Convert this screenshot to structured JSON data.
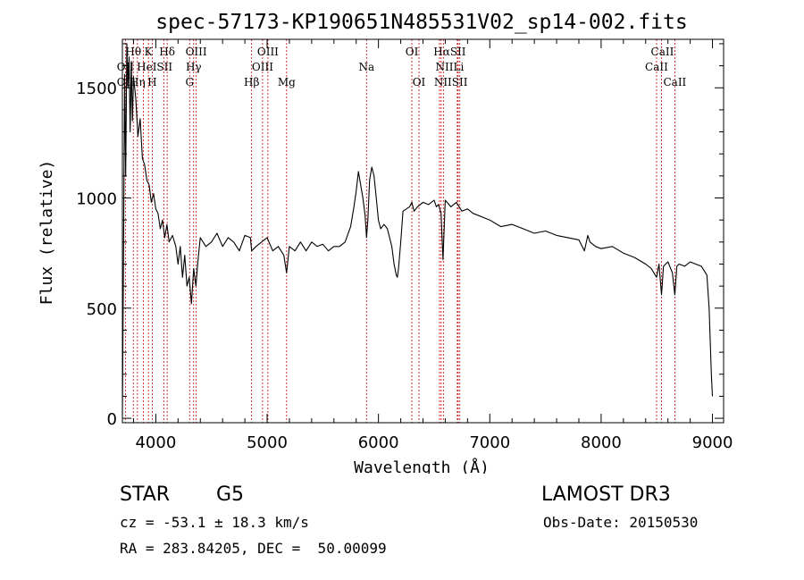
{
  "chart_data": {
    "type": "line",
    "title": "spec-57173-KP190651N485531V02_sp14-002.fits",
    "xlabel": "Wavelength (Å)",
    "ylabel": "Flux (relative)",
    "xlim": [
      3700,
      9100
    ],
    "ylim": [
      -20,
      1720
    ],
    "xticks": [
      4000,
      5000,
      6000,
      7000,
      8000,
      9000
    ],
    "xtick_labels": [
      "4000",
      "5000",
      "6000",
      "7000",
      "8000",
      "9000"
    ],
    "yticks": [
      0,
      500,
      1000,
      1500
    ],
    "ytick_labels": [
      "0",
      "500",
      "1000",
      "1500"
    ],
    "series": [
      {
        "name": "spectrum",
        "x": [
          3700,
          3710,
          3720,
          3730,
          3740,
          3750,
          3760,
          3770,
          3780,
          3790,
          3800,
          3820,
          3840,
          3860,
          3880,
          3900,
          3920,
          3940,
          3960,
          3980,
          4000,
          4020,
          4040,
          4060,
          4080,
          4100,
          4120,
          4150,
          4180,
          4200,
          4220,
          4240,
          4260,
          4280,
          4300,
          4320,
          4340,
          4360,
          4380,
          4400,
          4450,
          4500,
          4550,
          4600,
          4650,
          4700,
          4750,
          4800,
          4850,
          4861,
          4900,
          4950,
          5000,
          5050,
          5100,
          5150,
          5175,
          5200,
          5250,
          5300,
          5350,
          5400,
          5450,
          5500,
          5550,
          5600,
          5650,
          5700,
          5750,
          5780,
          5800,
          5820,
          5840,
          5860,
          5880,
          5893,
          5905,
          5920,
          5940,
          5960,
          5980,
          6000,
          6020,
          6050,
          6080,
          6100,
          6120,
          6140,
          6160,
          6170,
          6180,
          6200,
          6220,
          6250,
          6280,
          6300,
          6320,
          6350,
          6400,
          6450,
          6500,
          6520,
          6540,
          6562,
          6580,
          6600,
          6650,
          6700,
          6750,
          6800,
          6850,
          6900,
          6950,
          7000,
          7100,
          7200,
          7300,
          7400,
          7500,
          7600,
          7700,
          7800,
          7850,
          7880,
          7900,
          7950,
          8000,
          8100,
          8200,
          8300,
          8400,
          8450,
          8498,
          8520,
          8542,
          8560,
          8600,
          8640,
          8662,
          8680,
          8700,
          8750,
          8800,
          8850,
          8900,
          8950,
          8970,
          8990,
          9000
        ],
        "y": [
          10,
          700,
          1560,
          1100,
          1700,
          1500,
          1640,
          1300,
          1620,
          1350,
          1550,
          1450,
          1280,
          1360,
          1180,
          1150,
          1080,
          1060,
          980,
          1020,
          950,
          930,
          860,
          900,
          820,
          880,
          800,
          830,
          780,
          700,
          780,
          640,
          740,
          600,
          640,
          520,
          680,
          600,
          720,
          820,
          780,
          800,
          840,
          780,
          820,
          800,
          760,
          830,
          820,
          760,
          780,
          800,
          820,
          760,
          780,
          740,
          660,
          780,
          760,
          800,
          760,
          800,
          780,
          790,
          760,
          780,
          780,
          800,
          870,
          960,
          1030,
          1120,
          1060,
          1000,
          920,
          820,
          900,
          1080,
          1140,
          1100,
          1000,
          900,
          860,
          880,
          860,
          820,
          780,
          700,
          650,
          640,
          680,
          800,
          940,
          950,
          960,
          980,
          940,
          960,
          980,
          970,
          990,
          960,
          970,
          930,
          720,
          990,
          960,
          980,
          940,
          950,
          930,
          920,
          910,
          900,
          870,
          880,
          860,
          840,
          850,
          830,
          820,
          810,
          760,
          830,
          800,
          780,
          770,
          780,
          750,
          730,
          700,
          680,
          640,
          700,
          560,
          690,
          710,
          660,
          560,
          690,
          700,
          690,
          710,
          700,
          690,
          650,
          500,
          200,
          100
        ]
      }
    ],
    "lines": [
      {
        "name": "OII",
        "wavelength": 3727
      },
      {
        "name": "Hθ",
        "wavelength": 3798
      },
      {
        "name": "Hη",
        "wavelength": 3835
      },
      {
        "name": "K",
        "wavelength": 3934
      },
      {
        "name": "H",
        "wavelength": 3968
      },
      {
        "name": "HeI",
        "wavelength": 3889
      },
      {
        "name": "SII",
        "wavelength": 4072
      },
      {
        "name": "Hδ",
        "wavelength": 4102
      },
      {
        "name": "G",
        "wavelength": 4304
      },
      {
        "name": "Hγ",
        "wavelength": 4340
      },
      {
        "name": "OIII",
        "wavelength": 4363
      },
      {
        "name": "Hβ",
        "wavelength": 4861
      },
      {
        "name": "OIII",
        "wavelength": 4959
      },
      {
        "name": "OIII",
        "wavelength": 5007
      },
      {
        "name": "Mg",
        "wavelength": 5175
      },
      {
        "name": "Na",
        "wavelength": 5893
      },
      {
        "name": "OI",
        "wavelength": 6300
      },
      {
        "name": "OI",
        "wavelength": 6364
      },
      {
        "name": "NII",
        "wavelength": 6548
      },
      {
        "name": "Hα",
        "wavelength": 6563
      },
      {
        "name": "NII",
        "wavelength": 6583
      },
      {
        "name": "Li",
        "wavelength": 6708
      },
      {
        "name": "SII",
        "wavelength": 6716
      },
      {
        "name": "SII",
        "wavelength": 6731
      },
      {
        "name": "CaII",
        "wavelength": 8498
      },
      {
        "name": "CaII",
        "wavelength": 8542
      },
      {
        "name": "CaII",
        "wavelength": 8662
      }
    ],
    "line_label_rows": [
      [
        {
          "text": "Hθ",
          "wavelength": 3798
        },
        {
          "text": "K",
          "wavelength": 3934
        },
        {
          "text": "Hδ",
          "wavelength": 4102
        },
        {
          "text": "OIII",
          "wavelength": 4363
        },
        {
          "text": "OIII",
          "wavelength": 5007
        },
        {
          "text": "OI",
          "wavelength": 6300
        },
        {
          "text": "HαSII",
          "wavelength": 6640
        },
        {
          "text": "CaII",
          "wavelength": 8550
        }
      ],
      [
        {
          "text": "OII",
          "wavelength": 3727
        },
        {
          "text": "HeISII",
          "wavelength": 3990
        },
        {
          "text": "Hγ",
          "wavelength": 4340
        },
        {
          "text": "OIII",
          "wavelength": 4959
        },
        {
          "text": "Na",
          "wavelength": 5893
        },
        {
          "text": "NIILi",
          "wavelength": 6640
        },
        {
          "text": "CaII",
          "wavelength": 8498
        }
      ],
      [
        {
          "text": "OII",
          "wavelength": 3727
        },
        {
          "text": "Hη",
          "wavelength": 3835
        },
        {
          "text": "H",
          "wavelength": 3968
        },
        {
          "text": "G",
          "wavelength": 4304
        },
        {
          "text": "Hβ",
          "wavelength": 4861
        },
        {
          "text": "Mg",
          "wavelength": 5175
        },
        {
          "text": "OI",
          "wavelength": 6364
        },
        {
          "text": "NIISII",
          "wavelength": 6650
        },
        {
          "text": "CaII",
          "wavelength": 8662
        }
      ]
    ],
    "colors": {
      "spectrum": "#000000",
      "lines": "#cc0000",
      "axes": "#000000"
    }
  },
  "info": {
    "object_class": "STAR",
    "subclass": "G5",
    "survey": "LAMOST DR3",
    "redshift": "cz = -53.1 ± 18.3 km/s",
    "obs_date": "Obs-Date: 20150530",
    "coords": "RA = 283.84205, DEC =  50.00099"
  }
}
